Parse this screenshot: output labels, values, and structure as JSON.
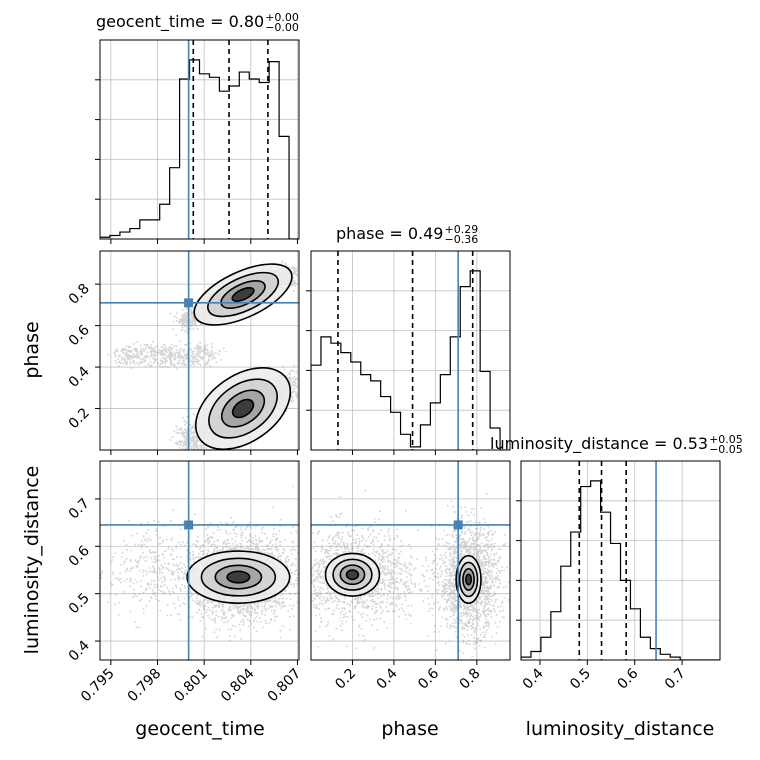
{
  "figure": {
    "titles": [
      {
        "param": "geocent_time",
        "value": "0.80",
        "plus": "+0.00",
        "minus": "−0.00"
      },
      {
        "param": "phase",
        "value": "0.49",
        "plus": "+0.29",
        "minus": "−0.36"
      },
      {
        "param": "luminosity_distance",
        "value": "0.53",
        "plus": "+0.05",
        "minus": "−0.05"
      }
    ],
    "colors": {
      "truth": "#4682b4",
      "hist": "#000000",
      "grid": "#c0c0c0",
      "scatter": "#9e9e9e"
    }
  },
  "chart_data": {
    "type": "corner",
    "parameters": [
      "geocent_time",
      "phase",
      "luminosity_distance"
    ],
    "axis_labels": {
      "x": [
        "geocent_time",
        "phase",
        "luminosity_distance"
      ],
      "y": [
        "phase",
        "luminosity_distance"
      ]
    },
    "ranges": {
      "geocent_time": [
        0.7943,
        0.8071
      ],
      "phase": [
        0.0,
        0.96
      ],
      "luminosity_distance": [
        0.36,
        0.78
      ]
    },
    "ticks": {
      "geocent_time": {
        "values": [
          0.795,
          0.798,
          0.801,
          0.804,
          0.807
        ],
        "labels": [
          "0.795",
          "0.798",
          "0.801",
          "0.804",
          "0.807"
        ]
      },
      "phase": {
        "values": [
          0.2,
          0.4,
          0.6,
          0.8
        ],
        "labels": [
          "0.2",
          "0.4",
          "0.6",
          "0.8"
        ]
      },
      "luminosity_distance": {
        "values": [
          0.4,
          0.5,
          0.6,
          0.7
        ],
        "labels": [
          "0.4",
          "0.5",
          "0.6",
          "0.7"
        ]
      }
    },
    "truths": {
      "geocent_time": 0.8,
      "phase": 0.71,
      "luminosity_distance": 0.645
    },
    "quantiles": {
      "geocent_time": [
        0.8003,
        0.8026,
        0.8051
      ],
      "phase": [
        0.13,
        0.49,
        0.78
      ],
      "luminosity_distance": [
        0.483,
        0.53,
        0.582
      ]
    },
    "histograms": {
      "geocent_time": {
        "bins": 20,
        "counts": [
          1,
          2,
          4,
          6,
          11,
          11,
          20,
          41,
          92,
          103,
          95,
          93,
          85,
          88,
          96,
          92,
          90,
          102,
          59,
          0
        ]
      },
      "phase": {
        "bins": 20,
        "counts": [
          27,
          36,
          34,
          31,
          28,
          24,
          22,
          17,
          12,
          5,
          1,
          8,
          15,
          24,
          36,
          52,
          57,
          25,
          7,
          0
        ]
      },
      "luminosity_distance": {
        "bins": 20,
        "counts": [
          1,
          3,
          8,
          17,
          33,
          45,
          61,
          63,
          52,
          41,
          28,
          18,
          8,
          4,
          2,
          1,
          0,
          0,
          0,
          0
        ]
      }
    },
    "grid": true
  }
}
